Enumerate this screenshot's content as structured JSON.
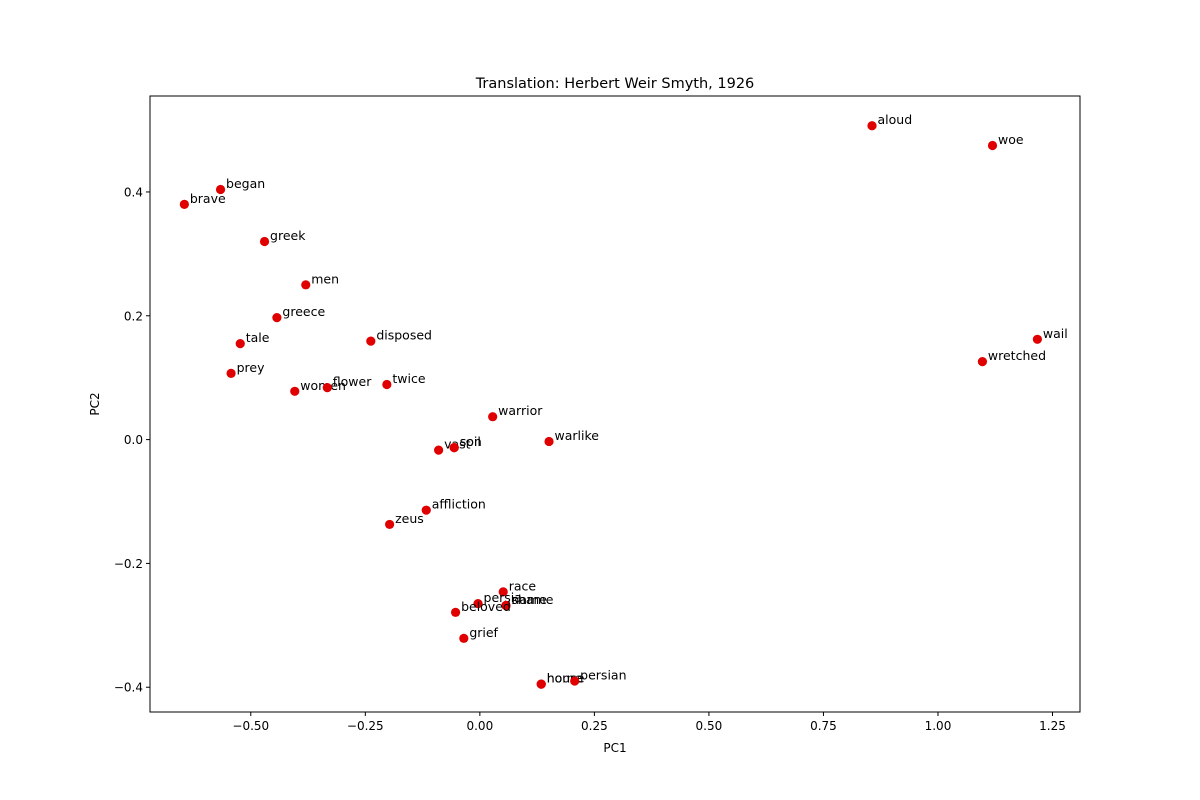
{
  "chart_data": {
    "type": "scatter",
    "title": "Translation: Herbert Weir Smyth, 1926",
    "xlabel": "PC1",
    "ylabel": "PC2",
    "xlim": [
      -0.72,
      1.31
    ],
    "ylim": [
      -0.44,
      0.555
    ],
    "xticks": [
      -0.5,
      -0.25,
      0.0,
      0.25,
      0.5,
      0.75,
      1.0,
      1.25
    ],
    "xtick_labels": [
      "−0.50",
      "−0.25",
      "0.00",
      "0.25",
      "0.50",
      "0.75",
      "1.00",
      "1.25"
    ],
    "yticks": [
      -0.4,
      -0.2,
      0.0,
      0.2,
      0.4
    ],
    "ytick_labels": [
      "−0.4",
      "−0.2",
      "0.0",
      "0.2",
      "0.4"
    ],
    "grid": false,
    "marker_color": "#e00000",
    "points": [
      {
        "label": "aloud",
        "x": 0.856,
        "y": 0.507
      },
      {
        "label": "woe",
        "x": 1.119,
        "y": 0.475
      },
      {
        "label": "began",
        "x": -0.566,
        "y": 0.404
      },
      {
        "label": "brave",
        "x": -0.645,
        "y": 0.38
      },
      {
        "label": "greek",
        "x": -0.47,
        "y": 0.32
      },
      {
        "label": "men",
        "x": -0.38,
        "y": 0.25
      },
      {
        "label": "greece",
        "x": -0.443,
        "y": 0.197
      },
      {
        "label": "disposed",
        "x": -0.238,
        "y": 0.159
      },
      {
        "label": "tale",
        "x": -0.523,
        "y": 0.155
      },
      {
        "label": "wail",
        "x": 1.217,
        "y": 0.162
      },
      {
        "label": "wretched",
        "x": 1.097,
        "y": 0.126
      },
      {
        "label": "prey",
        "x": -0.543,
        "y": 0.107
      },
      {
        "label": "women",
        "x": -0.404,
        "y": 0.078
      },
      {
        "label": "flower",
        "x": -0.333,
        "y": 0.084
      },
      {
        "label": "twice",
        "x": -0.203,
        "y": 0.089
      },
      {
        "label": "warrior",
        "x": 0.028,
        "y": 0.037
      },
      {
        "label": "warlike",
        "x": 0.151,
        "y": -0.003
      },
      {
        "label": "vast",
        "x": -0.09,
        "y": -0.017
      },
      {
        "label": "son",
        "x": -0.056,
        "y": -0.013
      },
      {
        "label": "soil",
        "x": -0.056,
        "y": -0.013
      },
      {
        "label": "affliction",
        "x": -0.117,
        "y": -0.114
      },
      {
        "label": "zeus",
        "x": -0.197,
        "y": -0.137
      },
      {
        "label": "race",
        "x": 0.051,
        "y": -0.246
      },
      {
        "label": "persia",
        "x": -0.004,
        "y": -0.265
      },
      {
        "label": "shame",
        "x": 0.057,
        "y": -0.268
      },
      {
        "label": "name",
        "x": 0.057,
        "y": -0.268
      },
      {
        "label": "beloved",
        "x": -0.053,
        "y": -0.279
      },
      {
        "label": "grief",
        "x": -0.035,
        "y": -0.321
      },
      {
        "label": "home",
        "x": 0.134,
        "y": -0.395
      },
      {
        "label": "house",
        "x": 0.134,
        "y": -0.395
      },
      {
        "label": "persian",
        "x": 0.207,
        "y": -0.39
      }
    ]
  }
}
